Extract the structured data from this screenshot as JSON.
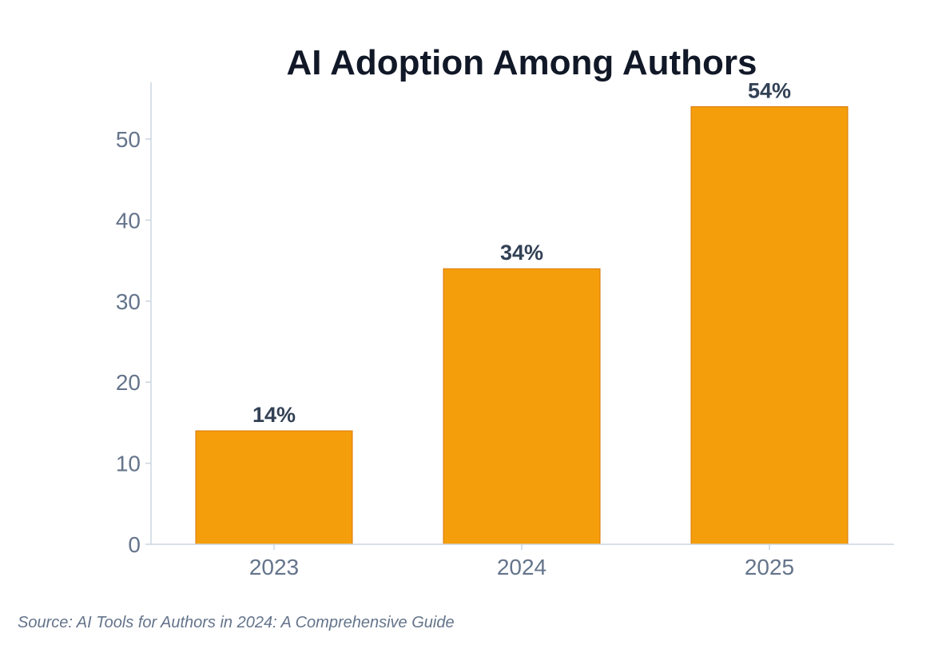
{
  "chart_data": {
    "type": "bar",
    "title": "AI Adoption Among Authors",
    "xlabel": "",
    "ylabel": "",
    "categories": [
      "2023",
      "2024",
      "2025"
    ],
    "values": [
      14,
      34,
      54
    ],
    "data_labels": [
      "14%",
      "34%",
      "54%"
    ],
    "ylim": [
      0,
      57
    ],
    "yticks": [
      0,
      10,
      20,
      30,
      40,
      50
    ],
    "grid": false,
    "legend": "none",
    "colors": {
      "bar_fill": "#F59E0B",
      "bar_edge": "#D97706",
      "axis": "#CBD5E1",
      "tick_text": "#64748B",
      "data_label": "#334155",
      "title": "#111827"
    }
  },
  "footer": {
    "source": "Source: AI Tools for Authors in 2024: A Comprehensive Guide"
  }
}
